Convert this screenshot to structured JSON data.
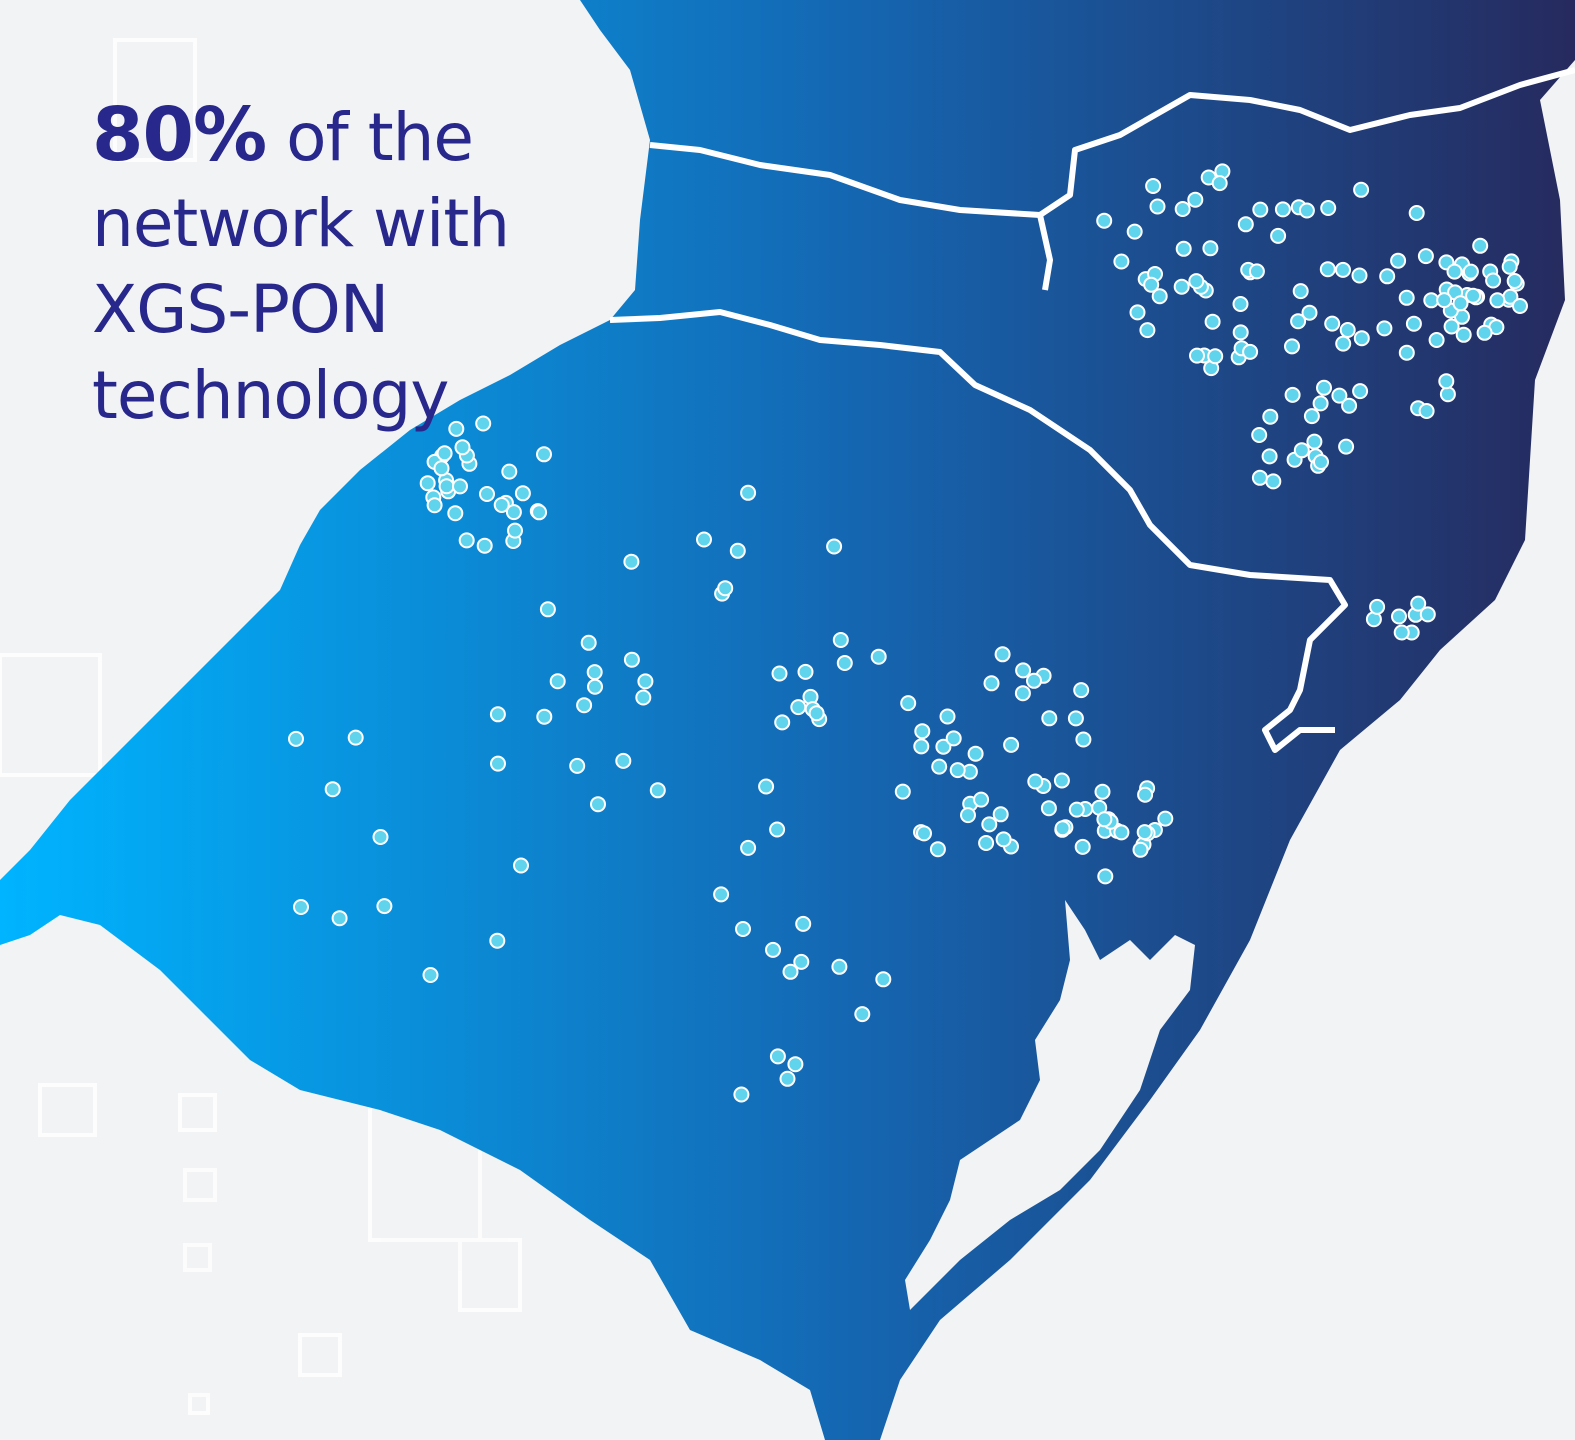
{
  "headline": {
    "highlight": "80%",
    "lines": [
      "of the",
      "network with",
      "XGS-PON",
      "technology"
    ]
  }
}
